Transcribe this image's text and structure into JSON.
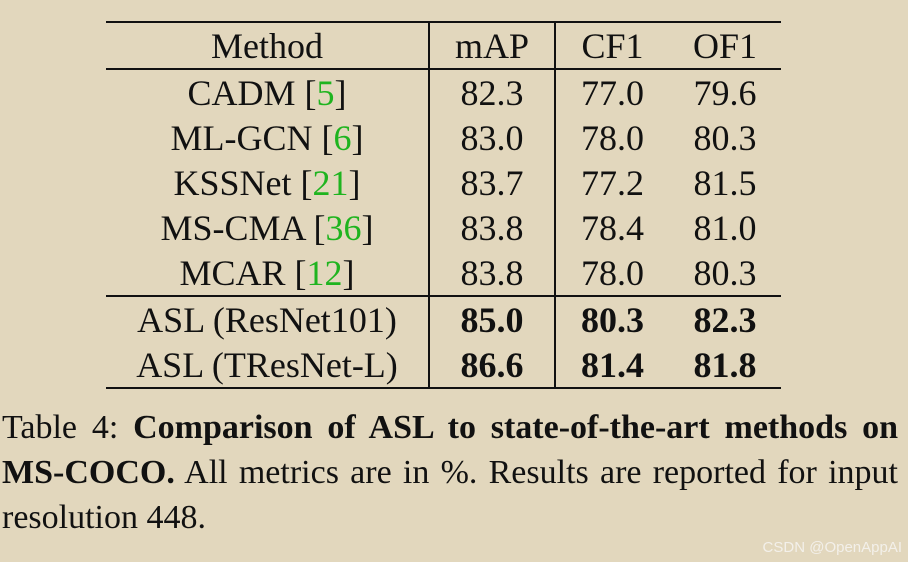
{
  "table": {
    "headers": [
      "Method",
      "mAP",
      "CF1",
      "OF1"
    ],
    "rows": [
      {
        "method": "CADM",
        "ref": "5",
        "map": "82.3",
        "cf1": "77.0",
        "of1": "79.6"
      },
      {
        "method": "ML-GCN",
        "ref": "6",
        "map": "83.0",
        "cf1": "78.0",
        "of1": "80.3"
      },
      {
        "method": "KSSNet",
        "ref": "21",
        "map": "83.7",
        "cf1": "77.2",
        "of1": "81.5"
      },
      {
        "method": "MS-CMA",
        "ref": "36",
        "map": "83.8",
        "cf1": "78.4",
        "of1": "81.0"
      },
      {
        "method": "MCAR",
        "ref": "12",
        "map": "83.8",
        "cf1": "78.0",
        "of1": "80.3"
      },
      {
        "method": "ASL (ResNet101)",
        "map": "85.0",
        "cf1": "80.3",
        "of1": "82.3"
      },
      {
        "method": "ASL (TResNet-L)",
        "map": "86.6",
        "cf1": "81.4",
        "of1": "81.8"
      }
    ]
  },
  "caption": {
    "label": "Table 4: ",
    "bold": "Comparison of ASL to state-of-the-art methods on MS-COCO.",
    "rest": " All metrics are in %. Results are reported for input resolution 448."
  },
  "watermark": "CSDN @OpenAppAI",
  "colors": {
    "background": "#e2d7bd",
    "citation": "#1fb41f"
  }
}
